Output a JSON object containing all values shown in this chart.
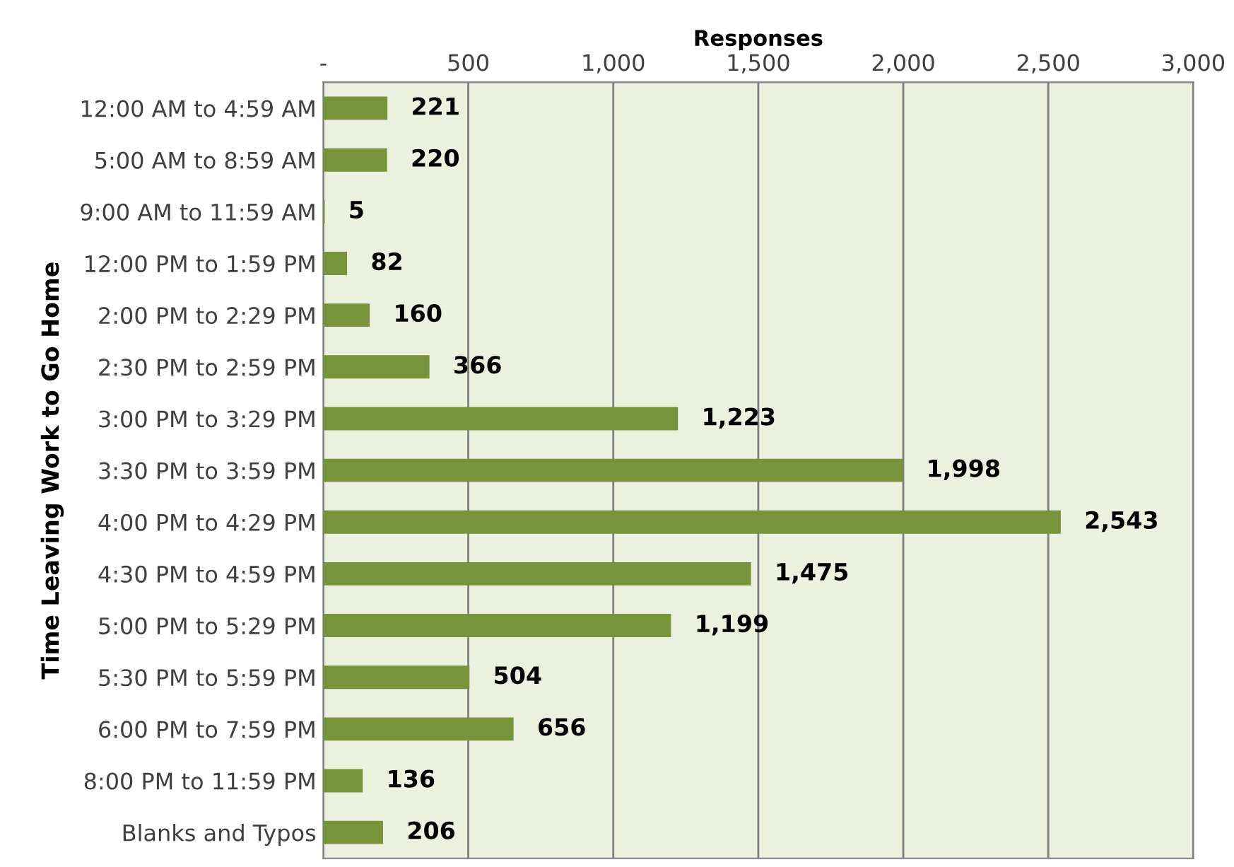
{
  "chart_data": {
    "type": "bar",
    "orientation": "horizontal",
    "xlabel": "Responses",
    "ylabel": "Time Leaving Work to Go Home",
    "categories": [
      "12:00 AM to 4:59 AM",
      "5:00 AM to 8:59 AM",
      "9:00 AM to 11:59 AM",
      "12:00 PM to 1:59 PM",
      "2:00 PM to 2:29 PM",
      "2:30 PM to 2:59 PM",
      "3:00 PM to 3:29 PM",
      "3:30 PM to 3:59 PM",
      "4:00 PM to 4:29 PM",
      "4:30 PM to 4:59 PM",
      "5:00 PM to 5:29 PM",
      "5:30 PM to 5:59 PM",
      "6:00 PM to 7:59 PM",
      "8:00 PM to 11:59 PM",
      "Blanks and Typos"
    ],
    "values": [
      221,
      220,
      5,
      82,
      160,
      366,
      1223,
      1998,
      2543,
      1475,
      1199,
      504,
      656,
      136,
      206
    ],
    "value_labels": [
      "221",
      "220",
      "5",
      "82",
      "160",
      "366",
      "1,223",
      "1,998",
      "2,543",
      "1,475",
      "1,199",
      "504",
      "656",
      "136",
      "206"
    ],
    "color": "#77933c",
    "xlim": [
      0,
      3000
    ],
    "xticks": [
      {
        "value": 0,
        "label": "-"
      },
      {
        "value": 500,
        "label": "500"
      },
      {
        "value": 1000,
        "label": "1,000"
      },
      {
        "value": 1500,
        "label": "1,500"
      },
      {
        "value": 2000,
        "label": "2,000"
      },
      {
        "value": 2500,
        "label": "2,500"
      },
      {
        "value": 3000,
        "label": "3,000"
      }
    ],
    "grid": "x",
    "legend": false
  }
}
